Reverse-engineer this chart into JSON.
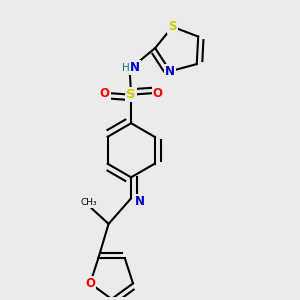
{
  "background_color": "#ebebeb",
  "bond_color": "#000000",
  "bond_width": 1.5,
  "atom_colors": {
    "S_sulfonyl": "#cccc00",
    "S_thiazole": "#cccc00",
    "N": "#0000cc",
    "O": "#ff0000",
    "C": "#000000",
    "H": "#008080"
  },
  "font_size": 8.5,
  "fig_width": 3.0,
  "fig_height": 3.0,
  "dpi": 100,
  "xlim": [
    0.15,
    0.85
  ],
  "ylim": [
    0.02,
    1.0
  ]
}
